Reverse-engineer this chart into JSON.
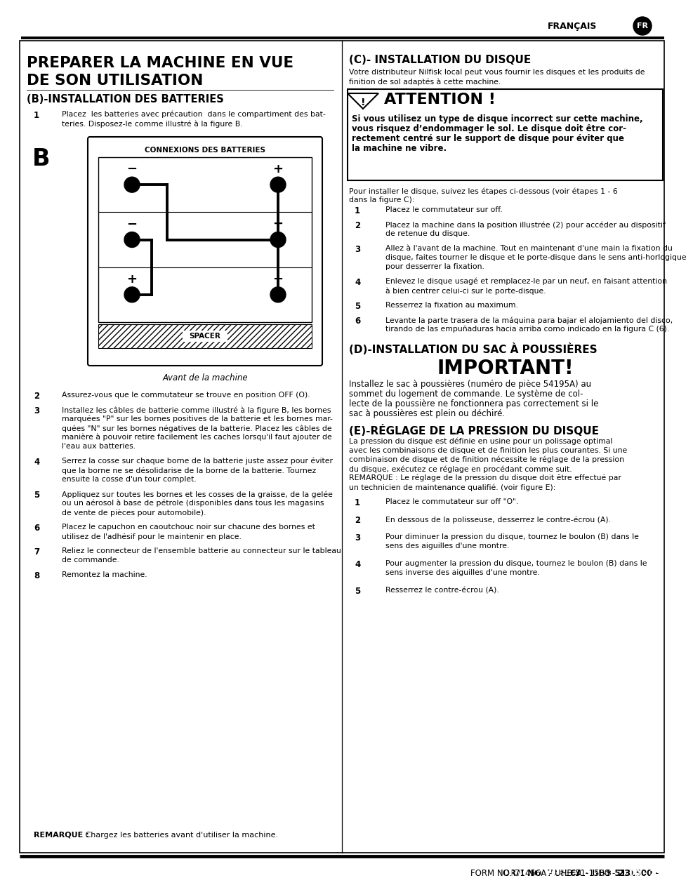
{
  "page_bg": "#ffffff",
  "header_text": "FRANÇAIS",
  "header_badge_text": "FR",
  "footer_text": "FORM NO. 71456A - UHB 51-1500 - ",
  "footer_bold": "23",
  "main_title_line1": "PREPARER LA MACHINE EN VUE",
  "main_title_line2": "DE SON UTILISATION",
  "section_b_title": "(B)-INSTALLATION DES BATTERIES",
  "section_c_title": "(C)- INSTALLATION DU DISQUE",
  "section_c_subtitle1": "Votre distributeur Nilfisk local peut vous fournir les disques et les produits de",
  "section_c_subtitle2": "finition de sol adaptés à cette machine.",
  "attention_title": "ATTENTION !",
  "attention_body_lines": [
    "Si vous utilisez un type de disque incorrect sur cette machine,",
    "vous risquez d’endommager le sol. Le disque doit être cor-",
    "rectement centré sur le support de disque pour éviter que",
    "la machine ne vibre."
  ],
  "disc_intro1": "Pour installer le disque, suivez les étapes ci-dessous (voir étapes 1 - 6",
  "disc_intro2": "dans la figure C):",
  "section_d_title": "(D)-INSTALLATION DU SAC À POUSSIÈRES",
  "important_title": "IMPORTANT!",
  "important_body_lines": [
    "Installez le sac à poussières (numéro de pièce 54195A) au",
    "sommet du logement de commande. Le système de col-",
    "lecte de la poussière ne fonctionnera pas correctement si le",
    "sac à poussières est plein ou déchiré."
  ],
  "section_e_title": "(E)-RÉGLAGE DE LA PRESSION DU DISQUE",
  "section_e_intro_lines": [
    "La pression du disque est définie en usine pour un polissage optimal",
    "avec les combinaisons de disque et de finition les plus courantes. Si une",
    "combinaison de disque et de finition nécessite le réglage de la pression",
    "du disque, exécutez ce réglage en procédant comme suit.",
    "REMARQUE : Le réglage de la pression du disque doit être effectué par",
    "un technicien de maintenance qualifié. (voir figure E):"
  ],
  "left_col_items": [
    {
      "num": "1",
      "lines": [
        "Placez  les batteries avec précaution  dans le compartiment des bat-",
        "teries. Disposez-le comme illustré à la figure B."
      ]
    },
    {
      "num": "2",
      "lines": [
        "Assurez-vous que le commutateur se trouve en position OFF (O)."
      ]
    },
    {
      "num": "3",
      "lines": [
        "Installez les câbles de batterie comme illustré à la figure B, les bornes",
        "marquées \"P\" sur les bornes positives de la batterie et les bornes mar-",
        "quées \"N\" sur les bornes négatives de la batterie. Placez les câbles de",
        "manière à pouvoir retire facilement les caches lorsqu'il faut ajouter de",
        "l'eau aux batteries."
      ]
    },
    {
      "num": "4",
      "lines": [
        "Serrez la cosse sur chaque borne de la batterie juste assez pour éviter",
        "que la borne ne se désolidarise de la borne de la batterie. Tournez",
        "ensuite la cosse d'un tour complet."
      ]
    },
    {
      "num": "5",
      "lines": [
        "Appliquez sur toutes les bornes et les cosses de la graisse, de la gelée",
        "ou un aérosol à base de pétrole (disponibles dans tous les magasins",
        "de vente de pièces pour automobile)."
      ]
    },
    {
      "num": "6",
      "lines": [
        "Placez le capuchon en caoutchouc noir sur chacune des bornes et",
        "utilisez de l'adhésif pour le maintenir en place."
      ]
    },
    {
      "num": "7",
      "lines": [
        "Reliez le connecteur de l'ensemble batterie au connecteur sur le tableau",
        "de commande."
      ]
    },
    {
      "num": "8",
      "lines": [
        "Remontez la machine."
      ]
    }
  ],
  "left_remark_bold": "REMARQUE :",
  "left_remark_rest": " Chargez les batteries avant d'utiliser la machine.",
  "right_col_items_c": [
    {
      "num": "1",
      "lines": [
        "Placez le commutateur sur off."
      ]
    },
    {
      "num": "2",
      "lines": [
        "Placez la machine dans la position illustrée (2) pour accéder au dispositif",
        "de retenue du disque."
      ]
    },
    {
      "num": "3",
      "lines": [
        "Allez à l'avant de la machine. Tout en maintenant d'une main la fixation du",
        "disque, faites tourner le disque et le porte-disque dans le sens anti-horlogique",
        "pour desserrer la fixation."
      ]
    },
    {
      "num": "4",
      "lines": [
        "Enlevez le disque usagé et remplacez-le par un neuf, en faisant attention",
        "à bien centrer celui-ci sur le porte-disque."
      ]
    },
    {
      "num": "5",
      "lines": [
        "Resserrez la fixation au maximum."
      ]
    },
    {
      "num": "6",
      "lines": [
        "Levante la parte trasera de la máquina para bajar el alojamiento del disco,",
        "tirando de las empuñaduras hacia arriba como indicado en la figura C (6)."
      ]
    }
  ],
  "right_col_items_e": [
    {
      "num": "1",
      "lines": [
        "Placez le commutateur sur off \"O\"."
      ]
    },
    {
      "num": "2",
      "lines": [
        "En dessous de la polisseuse, desserrez le contre-écrou (A)."
      ]
    },
    {
      "num": "3",
      "lines": [
        "Pour diminuer la pression du disque, tournez le boulon (B) dans le",
        "sens des aiguilles d'une montre."
      ]
    },
    {
      "num": "4",
      "lines": [
        "Pour augmenter la pression du disque, tournez le boulon (B) dans le",
        "sens inverse des aiguilles d'une montre."
      ]
    },
    {
      "num": "5",
      "lines": [
        "Resserrez le contre-écrou (A)."
      ]
    }
  ],
  "diagram_title": "CONNEXIONS DES BATTERIES",
  "diagram_caption": "Avant de la machine",
  "diagram_label": "B",
  "spacer_label": "SPACER"
}
